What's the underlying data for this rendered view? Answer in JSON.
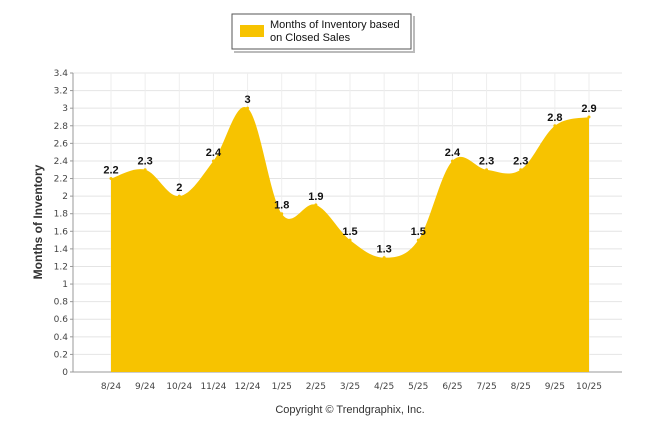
{
  "chart_data": {
    "type": "area",
    "categories": [
      "8/24",
      "9/24",
      "10/24",
      "11/24",
      "12/24",
      "1/25",
      "2/25",
      "3/25",
      "4/25",
      "5/25",
      "6/25",
      "7/25",
      "8/25",
      "9/25",
      "10/25"
    ],
    "series": [
      {
        "name": "Months of Inventory based on Closed Sales",
        "values": [
          2.2,
          2.3,
          2,
          2.4,
          3,
          1.8,
          1.9,
          1.5,
          1.3,
          1.5,
          2.4,
          2.3,
          2.3,
          2.8,
          2.9
        ]
      }
    ],
    "data_labels": [
      "2.2",
      "2.3",
      "2",
      "2.4",
      "3",
      "1.8",
      "1.9",
      "1.5",
      "1.3",
      "1.5",
      "2.4",
      "2.3",
      "2.3",
      "2.8",
      "2.9"
    ],
    "ylabel": "Months of Inventory",
    "xlabel": "",
    "ylim": [
      0,
      3.4
    ],
    "yticks": [
      "0",
      "0.2",
      "0.4",
      "0.6",
      "0.8",
      "1",
      "1.2",
      "1.4",
      "1.6",
      "1.8",
      "2",
      "2.2",
      "2.4",
      "2.6",
      "2.8",
      "3",
      "3.2",
      "3.4"
    ],
    "grid": true,
    "legend_position": "top-center",
    "fill_color": "#F7C300",
    "footer": "Copyright © Trendgraphix, Inc."
  }
}
